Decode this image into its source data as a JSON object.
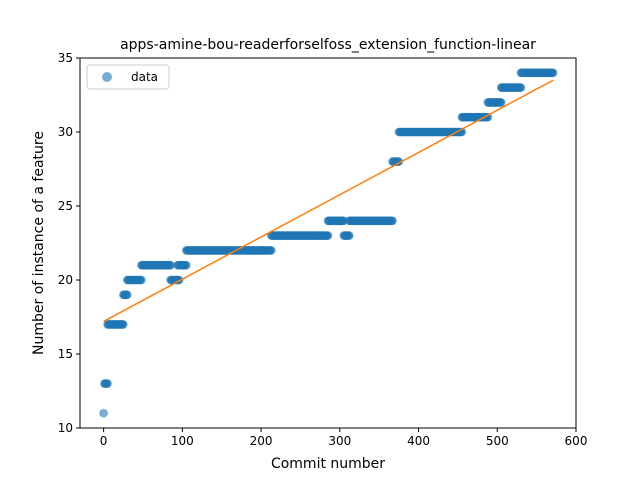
{
  "chart_data": {
    "type": "scatter",
    "title": "apps-amine-bou-readerforselfoss_extension_function-linear",
    "xlabel": "Commit number",
    "ylabel": "Number of instance of a feature",
    "xlim": [
      -30,
      600
    ],
    "ylim": [
      10,
      35
    ],
    "xticks": [
      "0",
      "100",
      "200",
      "300",
      "400",
      "500",
      "600"
    ],
    "yticks": [
      "10",
      "15",
      "20",
      "25",
      "30",
      "35"
    ],
    "grid": false,
    "legend": {
      "position": "top-left",
      "entries": [
        "data"
      ]
    },
    "colors": {
      "points": "#1f77b4",
      "fit": "#ff7f0e"
    },
    "series": [
      {
        "name": "data",
        "kind": "scatter",
        "segments": [
          {
            "x_from": 0,
            "x_to": 0,
            "y": 11
          },
          {
            "x_from": 1,
            "x_to": 5,
            "y": 13
          },
          {
            "x_from": 5,
            "x_to": 25,
            "y": 17
          },
          {
            "x_from": 25,
            "x_to": 30,
            "y": 19
          },
          {
            "x_from": 30,
            "x_to": 48,
            "y": 20
          },
          {
            "x_from": 48,
            "x_to": 85,
            "y": 21
          },
          {
            "x_from": 85,
            "x_to": 96,
            "y": 20
          },
          {
            "x_from": 94,
            "x_to": 105,
            "y": 21
          },
          {
            "x_from": 105,
            "x_to": 213,
            "y": 22
          },
          {
            "x_from": 213,
            "x_to": 285,
            "y": 23
          },
          {
            "x_from": 285,
            "x_to": 305,
            "y": 24
          },
          {
            "x_from": 305,
            "x_to": 312,
            "y": 23
          },
          {
            "x_from": 312,
            "x_to": 367,
            "y": 24
          },
          {
            "x_from": 367,
            "x_to": 375,
            "y": 28
          },
          {
            "x_from": 375,
            "x_to": 455,
            "y": 30
          },
          {
            "x_from": 455,
            "x_to": 488,
            "y": 31
          },
          {
            "x_from": 488,
            "x_to": 505,
            "y": 32
          },
          {
            "x_from": 505,
            "x_to": 530,
            "y": 33
          },
          {
            "x_from": 530,
            "x_to": 571,
            "y": 34
          }
        ]
      },
      {
        "name": "",
        "kind": "line",
        "x": [
          0,
          571
        ],
        "y": [
          17.2,
          33.5
        ]
      }
    ]
  }
}
